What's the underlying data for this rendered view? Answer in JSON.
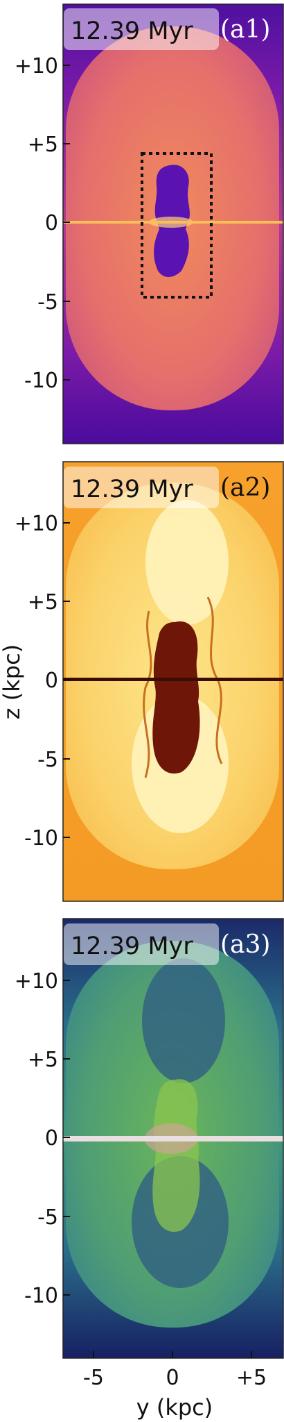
{
  "figure": {
    "panels": [
      {
        "time": "12.39 Myr",
        "tag": "(a1)",
        "colormap": "plasma"
      },
      {
        "time": "12.39 Myr",
        "tag": "(a2)",
        "colormap": "YlOrBr"
      },
      {
        "time": "12.39 Myr",
        "tag": "(a3)",
        "colormap": "viridis"
      }
    ],
    "z_ticks": [
      "+10",
      "+5",
      "0",
      "-5",
      "-10"
    ],
    "y_ticks": [
      "-5",
      "0",
      "+5"
    ],
    "ylabel": "z (kpc)",
    "xlabel": "y (kpc)"
  }
}
